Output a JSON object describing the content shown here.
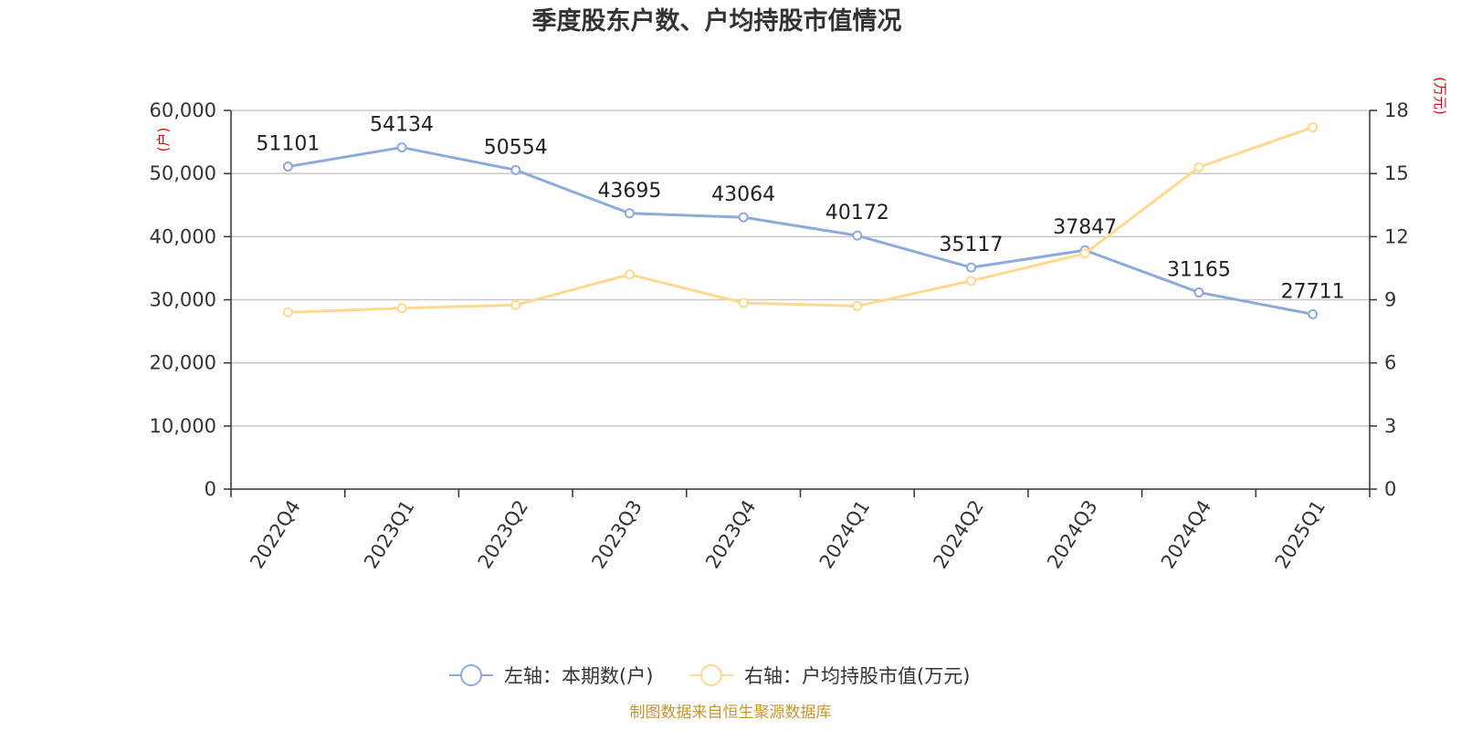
{
  "chart_data": {
    "type": "line",
    "title": "季度股东户数、户均持股市值情况",
    "categories": [
      "2022Q4",
      "2023Q1",
      "2023Q2",
      "2023Q3",
      "2023Q4",
      "2024Q1",
      "2024Q2",
      "2024Q3",
      "2024Q4",
      "2025Q1"
    ],
    "series": [
      {
        "name": "左轴：本期数(户)",
        "axis": "left",
        "color": "#8eaadb",
        "values": [
          51101,
          54134,
          50554,
          43695,
          43064,
          40172,
          35117,
          37847,
          31165,
          27711
        ],
        "labels": [
          "51101",
          "54134",
          "50554",
          "43695",
          "43064",
          "40172",
          "35117",
          "37847",
          "31165",
          "27711"
        ]
      },
      {
        "name": "右轴：户均持股市值(万元)",
        "axis": "right",
        "color": "#ffd990",
        "values": [
          8.4,
          8.6,
          8.75,
          10.2,
          8.85,
          8.7,
          9.9,
          11.2,
          15.3,
          17.2
        ]
      }
    ],
    "y_left": {
      "unit": "(户)",
      "ylim": [
        0,
        60000
      ],
      "ticks": [
        0,
        10000,
        20000,
        30000,
        40000,
        50000,
        60000
      ],
      "tick_labels": [
        "0",
        "10,000",
        "20,000",
        "30,000",
        "40,000",
        "50,000",
        "60,000"
      ]
    },
    "y_right": {
      "unit": "(万元)",
      "ylim": [
        0,
        18
      ],
      "ticks": [
        0,
        3,
        6,
        9,
        12,
        15,
        18
      ],
      "tick_labels": [
        "0",
        "3",
        "6",
        "9",
        "12",
        "15",
        "18"
      ]
    },
    "grid": true,
    "legend_position": "bottom-center",
    "source": "制图数据来自恒生聚源数据库"
  }
}
